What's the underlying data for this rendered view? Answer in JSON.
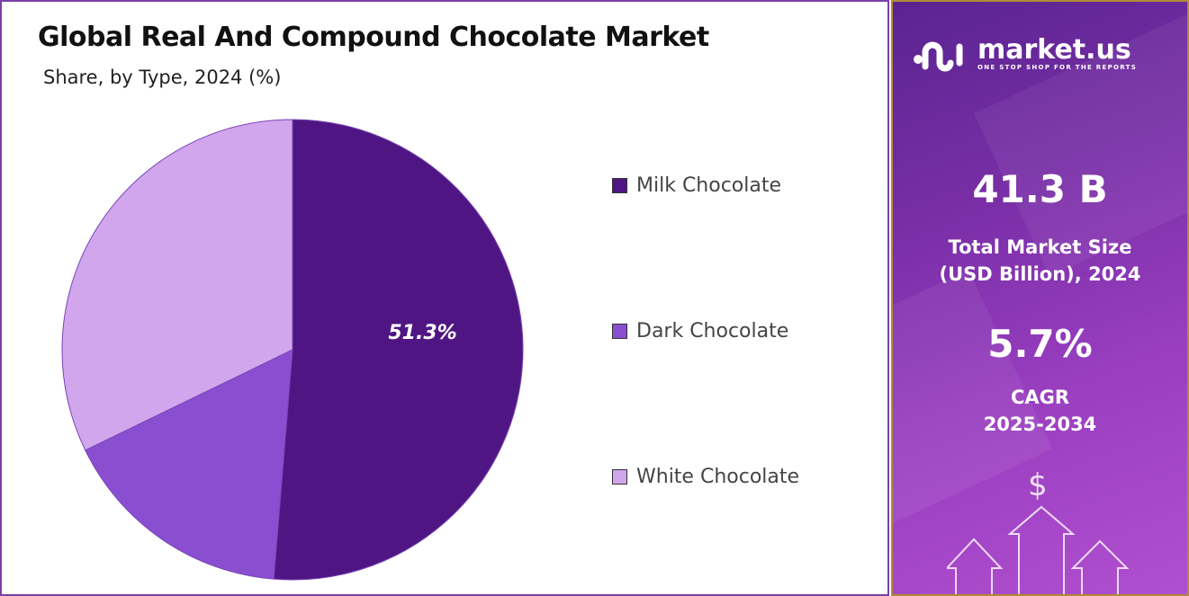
{
  "header": {
    "title": "Global Real And Compound Chocolate Market",
    "subtitle": "Share, by Type, 2024 (%)"
  },
  "chart_data": {
    "type": "pie",
    "title": "Global Real And Compound Chocolate Market",
    "subtitle": "Share, by Type, 2024 (%)",
    "start_angle": "12 o'clock, clockwise",
    "legend_position": "right",
    "slices": [
      {
        "name": "Milk Chocolate",
        "value": 51.3,
        "label": "51.3%",
        "color": "#4f1683"
      },
      {
        "name": "Dark Chocolate",
        "value": 16.5,
        "label": "",
        "color": "#8a4fd0"
      },
      {
        "name": "White Chocolate",
        "value": 32.2,
        "label": "",
        "color": "#d1a6ec"
      }
    ]
  },
  "sidebar": {
    "brand": "market.us",
    "tagline": "ONE STOP SHOP FOR THE REPORTS",
    "market_size": "41.3 B",
    "market_size_label_1": "Total Market Size",
    "market_size_label_2": "(USD Billion), 2024",
    "cagr": "5.7%",
    "cagr_label_1": "CAGR",
    "cagr_label_2": "2025-2034",
    "dollar_icon": "$"
  }
}
